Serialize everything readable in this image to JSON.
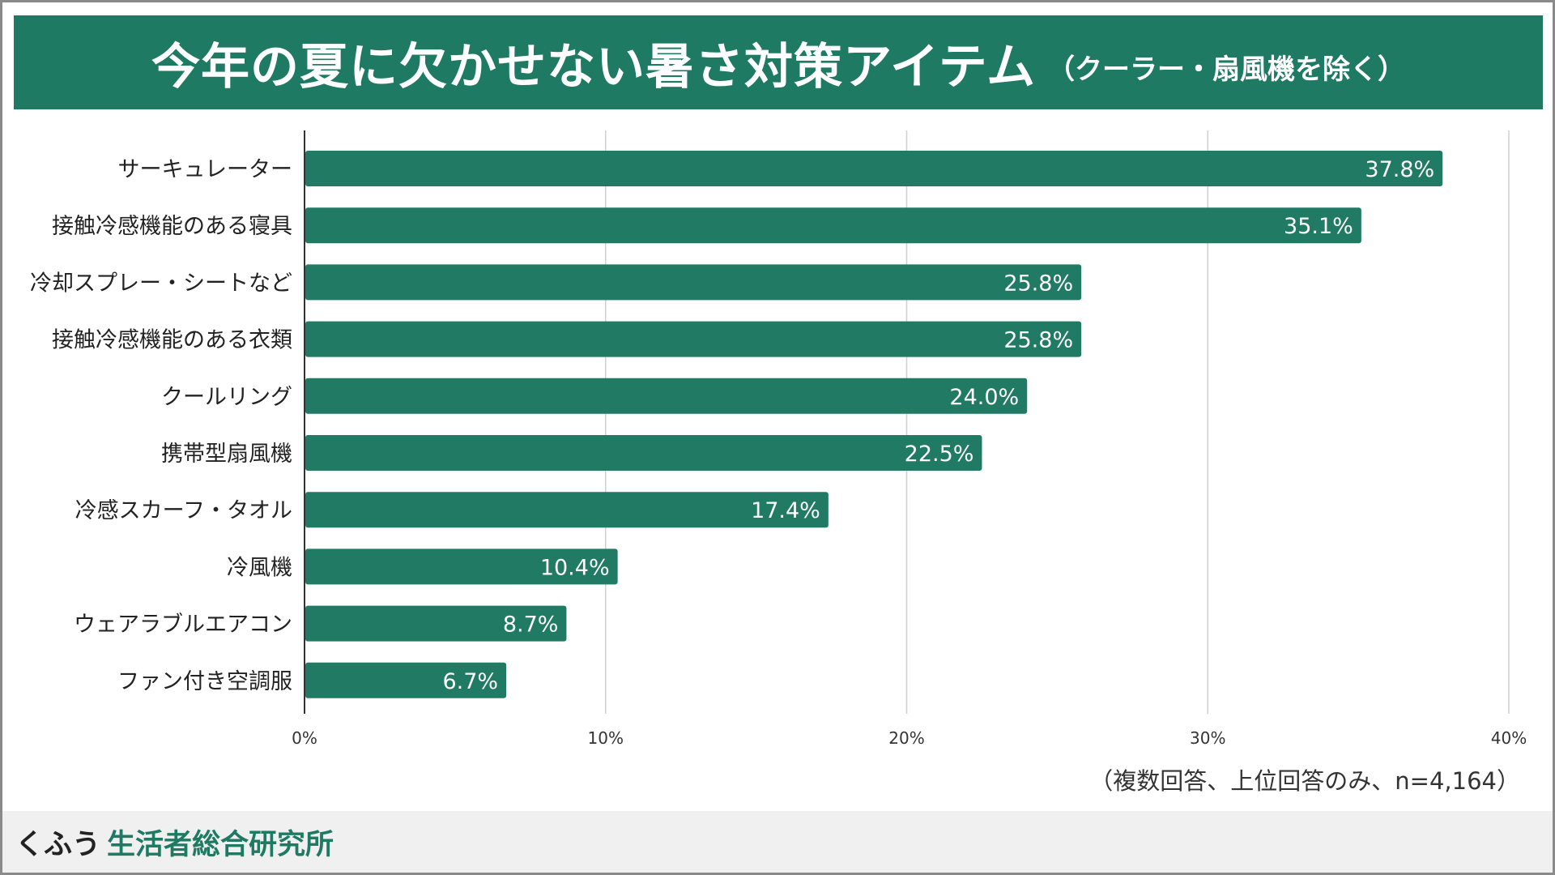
{
  "title": {
    "main": "今年の夏に欠かせない暑さ対策アイテム",
    "sub": "（クーラー・扇風機を除く）"
  },
  "colors": {
    "accent": "#1f7a63",
    "bar": "#217a63",
    "grid": "#d0d0d0"
  },
  "chart_data": {
    "type": "bar",
    "orientation": "horizontal",
    "title": "今年の夏に欠かせない暑さ対策アイテム（クーラー・扇風機を除く）",
    "categories": [
      "サーキュレーター",
      "接触冷感機能のある寝具",
      "冷却スプレー・シートなど",
      "接触冷感機能のある衣類",
      "クールリング",
      "携帯型扇風機",
      "冷感スカーフ・タオル",
      "冷風機",
      "ウェアラブルエアコン",
      "ファン付き空調服"
    ],
    "values": [
      37.8,
      35.1,
      25.8,
      25.8,
      24.0,
      22.5,
      17.4,
      10.4,
      8.7,
      6.7
    ],
    "value_labels": [
      "37.8%",
      "35.1%",
      "25.8%",
      "25.8%",
      "24.0%",
      "22.5%",
      "17.4%",
      "10.4%",
      "8.7%",
      "6.7%"
    ],
    "xlim": [
      0,
      40
    ],
    "xticks": [
      0,
      10,
      20,
      30,
      40
    ],
    "xtick_labels": [
      "0%",
      "10%",
      "20%",
      "30%",
      "40%"
    ],
    "xlabel": "",
    "ylabel": "",
    "grid": true
  },
  "note": "（複数回答、上位回答のみ、n=4,164）",
  "footer": {
    "brand_kana": "くふう",
    "brand_name": "生活者総合研究所"
  }
}
